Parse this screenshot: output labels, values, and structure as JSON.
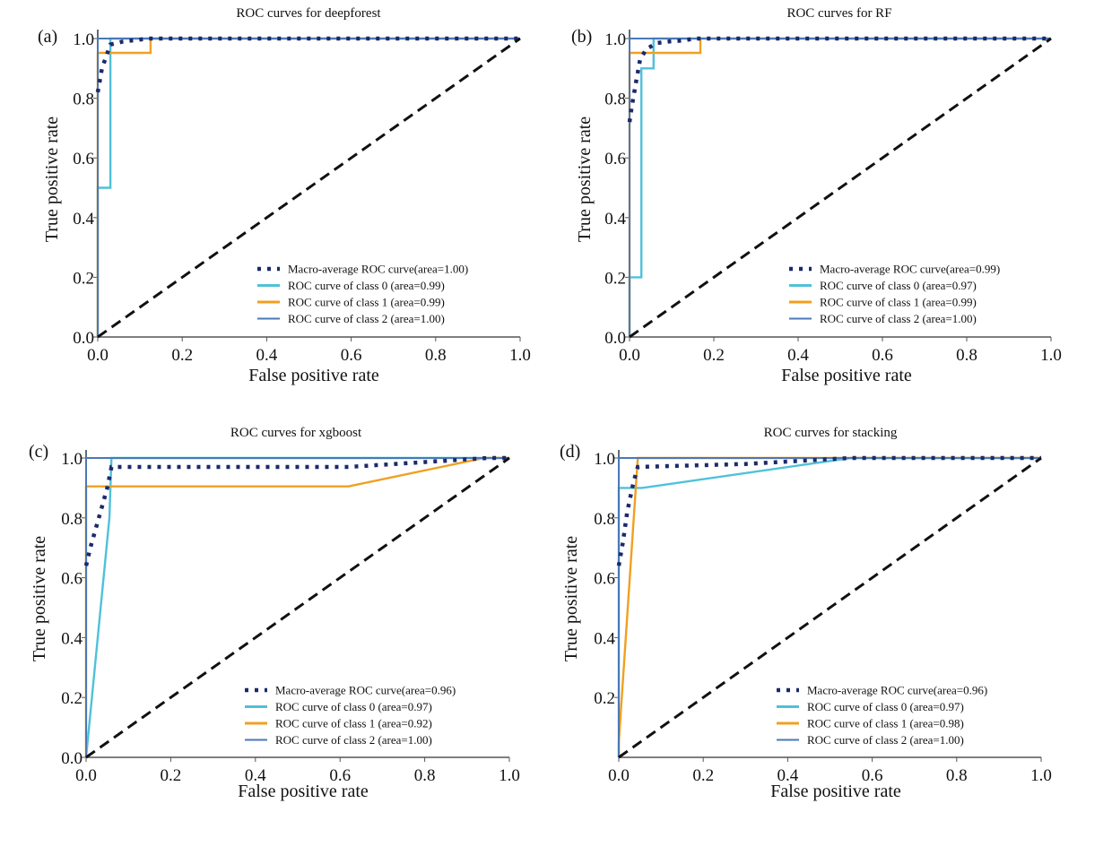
{
  "figure": {
    "description": "Four ROC curve panels comparing classifiers"
  },
  "chart_data": [
    {
      "type": "line",
      "panel_label": "(a)",
      "title": "ROC curves for deepforest",
      "xlabel": "False positive rate",
      "ylabel": "True positive rate",
      "xlim": [
        0,
        1
      ],
      "ylim": [
        0,
        1.0
      ],
      "xticks": [
        "0.0",
        "0.2",
        "0.4",
        "0.6",
        "0.8",
        "1.0"
      ],
      "yticks": [
        "0.0",
        "0.2",
        "0.4",
        "0.6",
        "0.8",
        "1.0"
      ],
      "grid": false,
      "legend_position": "lower-right",
      "series": [
        {
          "name": "Macro-average ROC curve(area=1.00)",
          "style": "dotted",
          "color": "#1b2a6b",
          "x": [
            0.0,
            0.005,
            0.01,
            0.02,
            0.03,
            0.06,
            0.09,
            0.12,
            1.0
          ],
          "y": [
            0.82,
            0.86,
            0.9,
            0.94,
            0.98,
            0.99,
            0.995,
            1.0,
            1.0
          ]
        },
        {
          "name": "ROC curve of class 0 (area=0.99)",
          "style": "solid",
          "color": "#4fc1d9",
          "x": [
            0.0,
            0.0,
            0.03,
            0.03,
            1.0
          ],
          "y": [
            0.0,
            0.5,
            0.5,
            1.0,
            1.0
          ]
        },
        {
          "name": "ROC curve of class 1 (area=0.99)",
          "style": "solid",
          "color": "#f0a020",
          "x": [
            0.0,
            0.0,
            0.125,
            0.125,
            1.0
          ],
          "y": [
            0.0,
            0.952,
            0.952,
            1.0,
            1.0
          ]
        },
        {
          "name": "ROC curve of class 2 (area=1.00)",
          "style": "solid",
          "color": "#4a78b8",
          "x": [
            0.0,
            0.0,
            1.0
          ],
          "y": [
            0.0,
            1.0,
            1.0
          ]
        },
        {
          "name": "chance",
          "style": "dashed",
          "color": "#111111",
          "x": [
            0,
            1
          ],
          "y": [
            0,
            1
          ]
        }
      ]
    },
    {
      "type": "line",
      "panel_label": "(b)",
      "title": "ROC curves for RF",
      "xlabel": "False positive rate",
      "ylabel": "True positive rate",
      "xlim": [
        0,
        1
      ],
      "ylim": [
        0,
        1.0
      ],
      "xticks": [
        "0.0",
        "0.2",
        "0.4",
        "0.6",
        "0.8",
        "1.0"
      ],
      "yticks": [
        "0.0",
        "0.2",
        "0.4",
        "0.6",
        "0.8",
        "1.0"
      ],
      "grid": false,
      "legend_position": "lower-right",
      "series": [
        {
          "name": "Macro-average ROC curve(area=0.99)",
          "style": "dotted",
          "color": "#1b2a6b",
          "x": [
            0.0,
            0.005,
            0.01,
            0.015,
            0.02,
            0.025,
            0.04,
            0.065,
            0.095,
            0.125,
            0.155,
            1.0
          ],
          "y": [
            0.72,
            0.77,
            0.81,
            0.85,
            0.89,
            0.93,
            0.965,
            0.985,
            0.99,
            0.993,
            1.0,
            1.0
          ]
        },
        {
          "name": "ROC curve of class 0 (area=0.97)",
          "style": "solid",
          "color": "#4fc1d9",
          "x": [
            0.0,
            0.0,
            0.028,
            0.028,
            0.057,
            0.057,
            1.0
          ],
          "y": [
            0.0,
            0.2,
            0.2,
            0.9,
            0.9,
            1.0,
            1.0
          ]
        },
        {
          "name": "ROC curve of class 1 (area=0.99)",
          "style": "solid",
          "color": "#f0a020",
          "x": [
            0.0,
            0.0,
            0.168,
            0.168,
            1.0
          ],
          "y": [
            0.0,
            0.952,
            0.952,
            1.0,
            1.0
          ]
        },
        {
          "name": "ROC curve of class 2 (area=1.00)",
          "style": "solid",
          "color": "#4a78b8",
          "x": [
            0.0,
            0.0,
            1.0
          ],
          "y": [
            0.0,
            1.0,
            1.0
          ]
        },
        {
          "name": "chance",
          "style": "dashed",
          "color": "#111111",
          "x": [
            0,
            1
          ],
          "y": [
            0,
            1
          ]
        }
      ]
    },
    {
      "type": "line",
      "panel_label": "(c)",
      "title": "ROC curves for xgboost",
      "xlabel": "False positive rate",
      "ylabel": "True positive rate",
      "xlim": [
        0,
        1
      ],
      "ylim": [
        0,
        1.0
      ],
      "xticks": [
        "0.0",
        "0.2",
        "0.4",
        "0.6",
        "0.8",
        "1.0"
      ],
      "yticks": [
        "0.0",
        "0.2",
        "0.4",
        "0.6",
        "0.8",
        "1.0"
      ],
      "grid": false,
      "legend_position": "lower-right",
      "series": [
        {
          "name": "Macro-average ROC curve(area=0.96)",
          "style": "dotted",
          "color": "#1b2a6b",
          "x": [
            0.0,
            0.01,
            0.03,
            0.05,
            0.06,
            0.62,
            0.95,
            1.0
          ],
          "y": [
            0.64,
            0.7,
            0.8,
            0.9,
            0.97,
            0.97,
            1.0,
            1.0
          ]
        },
        {
          "name": "ROC curve of class 0 (area=0.97)",
          "style": "solid",
          "color": "#4fc1d9",
          "x": [
            0.0,
            0.055,
            0.06,
            1.0
          ],
          "y": [
            0.0,
            0.8,
            1.0,
            1.0
          ]
        },
        {
          "name": "ROC curve of class 1 (area=0.92)",
          "style": "solid",
          "color": "#f0a020",
          "x": [
            0.0,
            0.0,
            0.62,
            0.94,
            1.0
          ],
          "y": [
            0.0,
            0.905,
            0.905,
            1.0,
            1.0
          ]
        },
        {
          "name": "ROC curve of class 2 (area=1.00)",
          "style": "solid",
          "color": "#4a78b8",
          "x": [
            0.0,
            0.0,
            1.0
          ],
          "y": [
            0.0,
            1.0,
            1.0
          ]
        },
        {
          "name": "chance",
          "style": "dashed",
          "color": "#111111",
          "x": [
            0,
            1
          ],
          "y": [
            0,
            1
          ]
        }
      ]
    },
    {
      "type": "line",
      "panel_label": "(d)",
      "title": "ROC curves for stacking",
      "xlabel": "False positive rate",
      "ylabel": "True positive rate",
      "xlim": [
        0,
        1
      ],
      "ylim": [
        0,
        1.0
      ],
      "xticks": [
        "0.0",
        "0.2",
        "0.4",
        "0.6",
        "0.8",
        "1.0"
      ],
      "yticks": [
        "0.2",
        "0.4",
        "0.6",
        "0.8",
        "1.0"
      ],
      "grid": false,
      "legend_position": "lower-right",
      "series": [
        {
          "name": "Macro-average ROC curve(area=0.96)",
          "style": "dotted",
          "color": "#1b2a6b",
          "x": [
            0.0,
            0.01,
            0.02,
            0.035,
            0.045,
            0.3,
            0.55,
            1.0
          ],
          "y": [
            0.64,
            0.72,
            0.82,
            0.92,
            0.97,
            0.98,
            1.0,
            1.0
          ]
        },
        {
          "name": "ROC curve of class 0 (area=0.97)",
          "style": "solid",
          "color": "#4fc1d9",
          "x": [
            0.0,
            0.0,
            0.055,
            0.55,
            1.0
          ],
          "y": [
            0.0,
            0.9,
            0.9,
            1.0,
            1.0
          ]
        },
        {
          "name": "ROC curve of class 1 (area=0.98)",
          "style": "solid",
          "color": "#f0a020",
          "x": [
            0.0,
            0.0,
            0.045,
            1.0
          ],
          "y": [
            0.0,
            0.05,
            1.0,
            1.0
          ]
        },
        {
          "name": "ROC curve of class 2 (area=1.00)",
          "style": "solid",
          "color": "#4a78b8",
          "x": [
            0.0,
            0.0,
            1.0
          ],
          "y": [
            0.0,
            1.0,
            1.0
          ]
        },
        {
          "name": "chance",
          "style": "dashed",
          "color": "#111111",
          "x": [
            0,
            1
          ],
          "y": [
            0,
            1
          ]
        }
      ]
    }
  ]
}
